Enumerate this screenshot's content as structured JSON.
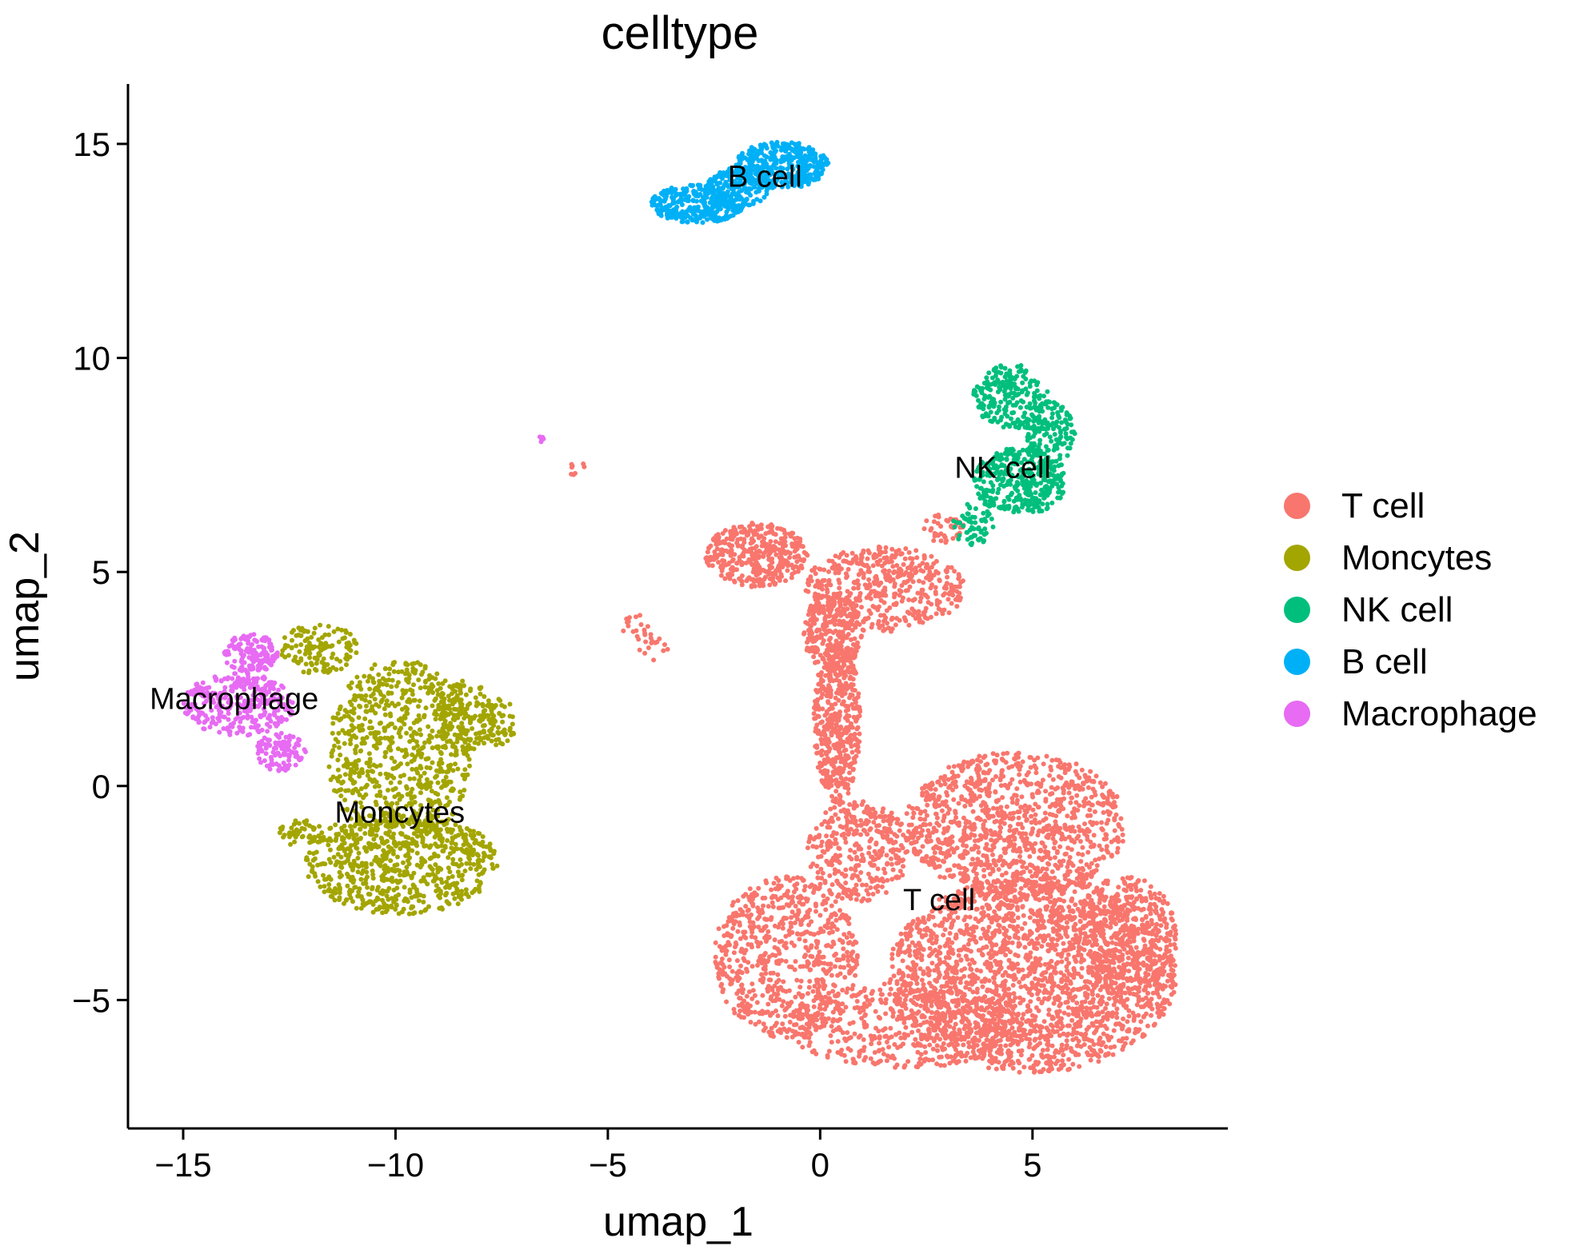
{
  "chart_data": {
    "type": "scatter",
    "title": "celltype",
    "xlabel": "umap_1",
    "ylabel": "umap_2",
    "xlim": [
      -16.3,
      9.6
    ],
    "ylim": [
      -8.0,
      16.4
    ],
    "xticks": [
      -15,
      -10,
      -5,
      0,
      5
    ],
    "yticks": [
      -5,
      0,
      5,
      10,
      15
    ],
    "xtick_labels": [
      "−15",
      "−10",
      "−5",
      "0",
      "5"
    ],
    "ytick_labels": [
      "−5",
      "0",
      "5",
      "10",
      "15"
    ],
    "grid": false,
    "legend_position": "right",
    "series": [
      {
        "name": "T cell",
        "color": "#F8766D",
        "label": "T cell",
        "label_pos": [
          2.8,
          -2.9
        ],
        "regions": [
          {
            "cx": 5.0,
            "cy": -4.4,
            "rx": 3.4,
            "ry": 2.3,
            "n": 2200
          },
          {
            "cx": -0.8,
            "cy": -4.0,
            "rx": 1.7,
            "ry": 1.9,
            "n": 700
          },
          {
            "cx": 2.0,
            "cy": -5.6,
            "rx": 2.8,
            "ry": 1.0,
            "n": 500
          },
          {
            "cx": 4.6,
            "cy": -0.9,
            "rx": 2.6,
            "ry": 1.7,
            "n": 1100
          },
          {
            "cx": 7.2,
            "cy": -3.5,
            "rx": 1.2,
            "ry": 1.4,
            "n": 350
          },
          {
            "cx": 0.9,
            "cy": -1.5,
            "rx": 1.2,
            "ry": 1.2,
            "n": 350
          },
          {
            "cx": 0.4,
            "cy": 1.5,
            "rx": 0.55,
            "ry": 1.9,
            "n": 450
          },
          {
            "cx": 0.3,
            "cy": 3.6,
            "rx": 0.7,
            "ry": 0.9,
            "n": 250
          },
          {
            "cx": -1.5,
            "cy": 5.4,
            "rx": 1.2,
            "ry": 0.75,
            "n": 380
          },
          {
            "cx": 1.5,
            "cy": 4.6,
            "rx": 1.9,
            "ry": 1.0,
            "n": 480
          },
          {
            "cx": 2.9,
            "cy": 6.0,
            "rx": 0.5,
            "ry": 0.35,
            "n": 40
          },
          {
            "cx": -4.3,
            "cy": 3.7,
            "rx": 0.35,
            "ry": 0.35,
            "n": 18
          },
          {
            "cx": -3.9,
            "cy": 3.2,
            "rx": 0.4,
            "ry": 0.3,
            "n": 14
          },
          {
            "cx": -5.7,
            "cy": 7.4,
            "rx": 0.2,
            "ry": 0.2,
            "n": 8
          }
        ]
      },
      {
        "name": "Moncytes",
        "color": "#A3A500",
        "label": "Moncytes",
        "label_pos": [
          -9.9,
          -0.85
        ],
        "regions": [
          {
            "cx": -9.9,
            "cy": -1.8,
            "rx": 2.3,
            "ry": 1.2,
            "n": 700
          },
          {
            "cx": -9.9,
            "cy": 0.8,
            "rx": 1.7,
            "ry": 2.2,
            "n": 700
          },
          {
            "cx": -8.4,
            "cy": 1.6,
            "rx": 0.7,
            "ry": 0.9,
            "n": 160
          },
          {
            "cx": -7.6,
            "cy": 1.5,
            "rx": 0.45,
            "ry": 0.55,
            "n": 60
          },
          {
            "cx": -11.8,
            "cy": 3.2,
            "rx": 0.9,
            "ry": 0.6,
            "n": 130
          },
          {
            "cx": -12.2,
            "cy": -1.1,
            "rx": 0.6,
            "ry": 0.3,
            "n": 50
          }
        ]
      },
      {
        "name": "NK cell",
        "color": "#00BF7D",
        "label": "NK cell",
        "label_pos": [
          4.3,
          7.2
        ],
        "regions": [
          {
            "cx": 4.7,
            "cy": 7.1,
            "rx": 1.1,
            "ry": 0.8,
            "n": 380
          },
          {
            "cx": 4.5,
            "cy": 9.1,
            "rx": 0.9,
            "ry": 0.75,
            "n": 220
          },
          {
            "cx": 5.4,
            "cy": 8.2,
            "rx": 0.6,
            "ry": 0.8,
            "n": 150
          },
          {
            "cx": 3.6,
            "cy": 6.1,
            "rx": 0.5,
            "ry": 0.5,
            "n": 60
          }
        ]
      },
      {
        "name": "B cell",
        "color": "#00B0F6",
        "label": "B cell",
        "label_pos": [
          -1.3,
          14.0
        ],
        "regions": [
          {
            "cx": -0.9,
            "cy": 14.5,
            "rx": 1.1,
            "ry": 0.55,
            "n": 380
          },
          {
            "cx": -2.9,
            "cy": 13.6,
            "rx": 1.1,
            "ry": 0.45,
            "n": 320
          },
          {
            "cx": -1.9,
            "cy": 14.0,
            "rx": 0.8,
            "ry": 0.45,
            "n": 180
          }
        ]
      },
      {
        "name": "Macrophage",
        "color": "#E76BF3",
        "label": "Macrophage",
        "label_pos": [
          -13.8,
          1.8
        ],
        "regions": [
          {
            "cx": -13.7,
            "cy": 1.9,
            "rx": 1.3,
            "ry": 0.75,
            "n": 320
          },
          {
            "cx": -13.4,
            "cy": 3.1,
            "rx": 0.65,
            "ry": 0.45,
            "n": 150
          },
          {
            "cx": -12.7,
            "cy": 0.8,
            "rx": 0.6,
            "ry": 0.45,
            "n": 100
          },
          {
            "cx": -6.6,
            "cy": 8.1,
            "rx": 0.1,
            "ry": 0.12,
            "n": 6
          }
        ]
      }
    ]
  }
}
